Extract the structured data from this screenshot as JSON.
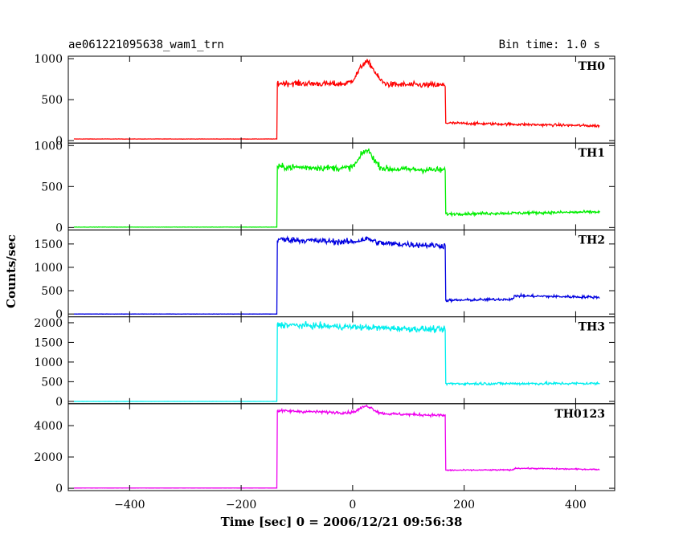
{
  "chart_data": {
    "type": "line",
    "title": "ae061221095638_wam1_trn",
    "subtitle": "Bin time: 1.0 s",
    "xlabel": "Time [sec] 0 = 2006/12/21 09:56:38",
    "ylabel": "Counts/sec",
    "xlim": [
      -510,
      470
    ],
    "x_ticks": [
      -400,
      -200,
      0,
      200,
      400
    ],
    "x_tick_labels": [
      "−400",
      "−200",
      "0",
      "200",
      "400"
    ],
    "grid": false,
    "panels": [
      {
        "name": "TH0",
        "color": "#ff0000",
        "ylim": [
          -30,
          1030
        ],
        "y_ticks": [
          0,
          500,
          1000
        ],
        "y_tick_labels": [
          "0",
          "500",
          "1000"
        ],
        "profile": {
          "x_start": -500,
          "x_rise": -135,
          "x_fall": 167,
          "x_end": 443,
          "pre_level": 20,
          "mid_level_start": 700,
          "mid_level_end": 675,
          "post_level_start": 215,
          "post_level_end": 180,
          "noise": 28,
          "peak": {
            "x": 25,
            "height": 270,
            "width": 14
          }
        }
      },
      {
        "name": "TH1",
        "color": "#00ee00",
        "ylim": [
          -30,
          1030
        ],
        "y_ticks": [
          0,
          500,
          1000
        ],
        "y_tick_labels": [
          "0",
          "500",
          "1000"
        ],
        "profile": {
          "x_start": -500,
          "x_rise": -135,
          "x_fall": 167,
          "x_end": 443,
          "pre_level": 5,
          "mid_level_start": 740,
          "mid_level_end": 700,
          "post_level_start": 165,
          "post_level_end": 190,
          "noise": 30,
          "peak": {
            "x": 25,
            "height": 220,
            "width": 12
          }
        }
      },
      {
        "name": "TH2",
        "color": "#0000e0",
        "ylim": [
          -60,
          1800
        ],
        "y_ticks": [
          0,
          500,
          1000,
          1500
        ],
        "y_tick_labels": [
          "0",
          "500",
          "1000",
          "1500"
        ],
        "profile": {
          "x_start": -500,
          "x_rise": -135,
          "x_fall": 167,
          "x_end": 443,
          "pre_level": 0,
          "mid_level_start": 1600,
          "mid_level_end": 1460,
          "post_level_start": 290,
          "post_level_end": 360,
          "step2": {
            "x": 290,
            "level": 390
          },
          "noise": 50,
          "peak": {
            "x": 25,
            "height": 80,
            "width": 12
          }
        }
      },
      {
        "name": "TH3",
        "color": "#00eeee",
        "ylim": [
          -60,
          2150
        ],
        "y_ticks": [
          0,
          500,
          1000,
          1500,
          2000
        ],
        "y_tick_labels": [
          "0",
          "500",
          "1000",
          "1500",
          "2000"
        ],
        "profile": {
          "x_start": -500,
          "x_rise": -135,
          "x_fall": 167,
          "x_end": 443,
          "pre_level": 0,
          "mid_level_start": 1950,
          "mid_level_end": 1820,
          "post_level_start": 450,
          "post_level_end": 455,
          "noise": 60,
          "peak": {
            "x": 25,
            "height": 0,
            "width": 12
          }
        }
      },
      {
        "name": "TH0123",
        "color": "#ee00ee",
        "ylim": [
          -150,
          5400
        ],
        "y_ticks": [
          0,
          2000,
          4000
        ],
        "y_tick_labels": [
          "0",
          "2000",
          "4000"
        ],
        "profile": {
          "x_start": -500,
          "x_rise": -135,
          "x_fall": 167,
          "x_end": 443,
          "pre_level": 15,
          "mid_level_start": 4950,
          "mid_level_end": 4650,
          "post_level_start": 1150,
          "post_level_end": 1200,
          "step2": {
            "x": 290,
            "level": 1280
          },
          "noise": 70,
          "peak": {
            "x": 25,
            "height": 450,
            "width": 12
          }
        }
      }
    ]
  }
}
